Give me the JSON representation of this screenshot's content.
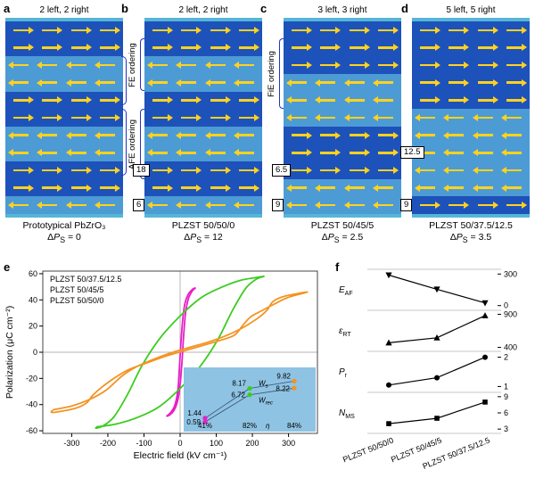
{
  "colors": {
    "dark_stripe": "#1e52bb",
    "light_stripe": "#4d9bd5",
    "panel_edge": "#55b6d8",
    "arrow": "#ffd21f",
    "bracket": "#2334c8",
    "magenta": "#e81fc8",
    "green": "#3bcc1e",
    "orange": "#f49322",
    "inset_bg": "#8fc3e3"
  },
  "panels": [
    {
      "letter": "a",
      "title": "2 left, 2 right",
      "caption1": "Prototypical PbZrO₃",
      "dps": {
        "d": "Δ",
        "p": "P",
        "sub": "S",
        "eq": " = 0"
      },
      "rows": [
        "R",
        "R",
        "L",
        "L",
        "R",
        "R",
        "L",
        "L",
        "R",
        "R",
        "L"
      ],
      "boxes": [],
      "brackets_right": [
        [
          2,
          4
        ],
        [
          5,
          8
        ]
      ]
    },
    {
      "letter": "b",
      "title": "2 left, 2 right",
      "caption1": "PLZST 50/50/0",
      "dps": {
        "d": "Δ",
        "p": "P",
        "sub": "S",
        "eq": " = 12"
      },
      "rows": [
        "R",
        "R",
        "L",
        "L",
        "R",
        "R",
        "L",
        "L",
        "R",
        "R",
        "L"
      ],
      "boxes": [
        {
          "label": "18",
          "row": 8
        },
        {
          "label": "6",
          "row": 10
        }
      ],
      "brackets_right": []
    },
    {
      "letter": "c",
      "title": "3 left, 3 right",
      "caption1": "PLZST 50/45/5",
      "dps": {
        "d": "Δ",
        "p": "P",
        "sub": "S",
        "eq": " = 2.5"
      },
      "rows": [
        "R",
        "R",
        "R",
        "L",
        "L",
        "L",
        "R",
        "R",
        "R",
        "L",
        "L"
      ],
      "boxes": [
        {
          "label": "6.5",
          "row": 8
        },
        {
          "label": "9",
          "row": 10
        }
      ],
      "brackets_right": []
    },
    {
      "letter": "d",
      "title": "5 left, 5 right",
      "caption1": "PLZST 50/37.5/12.5",
      "dps": {
        "d": "Δ",
        "p": "P",
        "sub": "S",
        "eq": " = 3.5"
      },
      "rows": [
        "R",
        "R",
        "R",
        "R",
        "R",
        "L",
        "L",
        "L",
        "L",
        "L",
        "R"
      ],
      "boxes": [
        {
          "label": "12.5",
          "row": 7
        },
        {
          "label": "9",
          "row": 10
        }
      ],
      "brackets_right": []
    }
  ],
  "ordering_labels": {
    "fe": {
      "text": "FE ordering"
    },
    "afe": {
      "text": "AFE ordering"
    },
    "fie": {
      "text": "FiE ordering"
    }
  },
  "chart_data": [
    {
      "letter": "e",
      "type": "line",
      "xlabel": "Electric field (kV cm⁻¹)",
      "ylabel": "Polarization (μC cm⁻²)",
      "xlim": [
        -380,
        380
      ],
      "ylim": [
        -62,
        62
      ],
      "xticks": [
        -300,
        -200,
        -100,
        0,
        100,
        200,
        300
      ],
      "yticks": [
        -60,
        -40,
        -20,
        0,
        20,
        40,
        60
      ],
      "legend": [
        "PLZST 50/37.5/12.5",
        "PLZST 50/45/5",
        "PLZST 50/50/0"
      ],
      "series": [
        {
          "name": "PLZST 50/37.5/12.5",
          "color": "#e81fc8",
          "points": [
            [
              -38,
              -49
            ],
            [
              -26,
              -46
            ],
            [
              -14,
              -40
            ],
            [
              -6,
              -28
            ],
            [
              -2,
              -12
            ],
            [
              2,
              6
            ],
            [
              7,
              24
            ],
            [
              13,
              37
            ],
            [
              22,
              44
            ],
            [
              34,
              48
            ],
            [
              42,
              49
            ],
            [
              34,
              47
            ],
            [
              23,
              41
            ],
            [
              15,
              30
            ],
            [
              10,
              14
            ],
            [
              6,
              -4
            ],
            [
              1,
              -22
            ],
            [
              -6,
              -36
            ],
            [
              -16,
              -44
            ],
            [
              -29,
              -48
            ],
            [
              -38,
              -49
            ]
          ]
        },
        {
          "name": "PLZST 50/45/5",
          "color": "#3bcc1e",
          "points": [
            [
              -232,
              -57
            ],
            [
              -180,
              -55
            ],
            [
              -120,
              -50
            ],
            [
              -60,
              -42
            ],
            [
              -5,
              -29
            ],
            [
              55,
              -11
            ],
            [
              105,
              10
            ],
            [
              145,
              32
            ],
            [
              182,
              49
            ],
            [
              212,
              56
            ],
            [
              232,
              58
            ],
            [
              210,
              57
            ],
            [
              168,
              55
            ],
            [
              118,
              50
            ],
            [
              60,
              42
            ],
            [
              5,
              29
            ],
            [
              -55,
              11
            ],
            [
              -105,
              -10
            ],
            [
              -145,
              -32
            ],
            [
              -182,
              -49
            ],
            [
              -212,
              -56
            ],
            [
              -232,
              -58
            ],
            [
              -232,
              -57
            ]
          ]
        },
        {
          "name": "PLZST 50/50/0",
          "color": "#f49322",
          "points": [
            [
              -352,
              -44
            ],
            [
              -300,
              -41
            ],
            [
              -250,
              -36
            ],
            [
              -205,
              -29
            ],
            [
              -160,
              -18
            ],
            [
              -120,
              -11
            ],
            [
              -70,
              -5
            ],
            [
              -20,
              0
            ],
            [
              30,
              4
            ],
            [
              80,
              8
            ],
            [
              130,
              13
            ],
            [
              175,
              19
            ],
            [
              215,
              26
            ],
            [
              240,
              32
            ],
            [
              258,
              39
            ],
            [
              292,
              43
            ],
            [
              352,
              46
            ],
            [
              300,
              42
            ],
            [
              262,
              37
            ],
            [
              228,
              32
            ],
            [
              195,
              27
            ],
            [
              172,
              20
            ],
            [
              150,
              13
            ],
            [
              110,
              9
            ],
            [
              60,
              5
            ],
            [
              10,
              1
            ],
            [
              -40,
              -3
            ],
            [
              -90,
              -8
            ],
            [
              -140,
              -13
            ],
            [
              -178,
              -19
            ],
            [
              -218,
              -27
            ],
            [
              -242,
              -33
            ],
            [
              -260,
              -39
            ],
            [
              -292,
              -43
            ],
            [
              -352,
              -46
            ],
            [
              -352,
              -44
            ]
          ]
        }
      ],
      "inset": {
        "ws_label": {
          "main": "W",
          "sub": "s"
        },
        "wrec_label": {
          "main": "W",
          "sub": "rec"
        },
        "eta_label": "η",
        "columns": [
          {
            "name": "PLZST 50/37.5/12.5",
            "color": "#e81fc8",
            "ws": 1.44,
            "wrec": 0.59,
            "eta": "41%"
          },
          {
            "name": "PLZST 50/45/5",
            "color": "#3bcc1e",
            "ws": 8.17,
            "wrec": 6.72,
            "eta": "82%"
          },
          {
            "name": "PLZST 50/50/0",
            "color": "#f49322",
            "ws": 9.82,
            "wrec": 8.22,
            "eta": "84%"
          }
        ]
      }
    },
    {
      "letter": "f",
      "type": "line",
      "categories": [
        "PLZST 50/50/0",
        "PLZST 50/45/5",
        "PLZST 50/37.5/12.5"
      ],
      "subplots": [
        {
          "label_main": "E",
          "label_sub": "AF",
          "marker": "triangle-down",
          "values": [
            290,
            155,
            25
          ],
          "ylim": [
            -45,
            345
          ],
          "ticks": [
            300,
            0
          ]
        },
        {
          "label_main": "ε",
          "label_sub": "RT",
          "marker": "triangle-up",
          "values": [
            470,
            545,
            880
          ],
          "ylim": [
            340,
            960
          ],
          "ticks": [
            900,
            400
          ]
        },
        {
          "label_main": "P",
          "label_sub": "r",
          "marker": "circle",
          "values": [
            1.05,
            1.3,
            2.0
          ],
          "ylim": [
            0.8,
            2.2
          ],
          "ticks": [
            2,
            1
          ]
        },
        {
          "label_main": "N",
          "label_sub": "MS",
          "marker": "square",
          "values": [
            4,
            5,
            8
          ],
          "ylim": [
            2.2,
            9.8
          ],
          "ticks": [
            9,
            6,
            3
          ]
        }
      ]
    }
  ]
}
